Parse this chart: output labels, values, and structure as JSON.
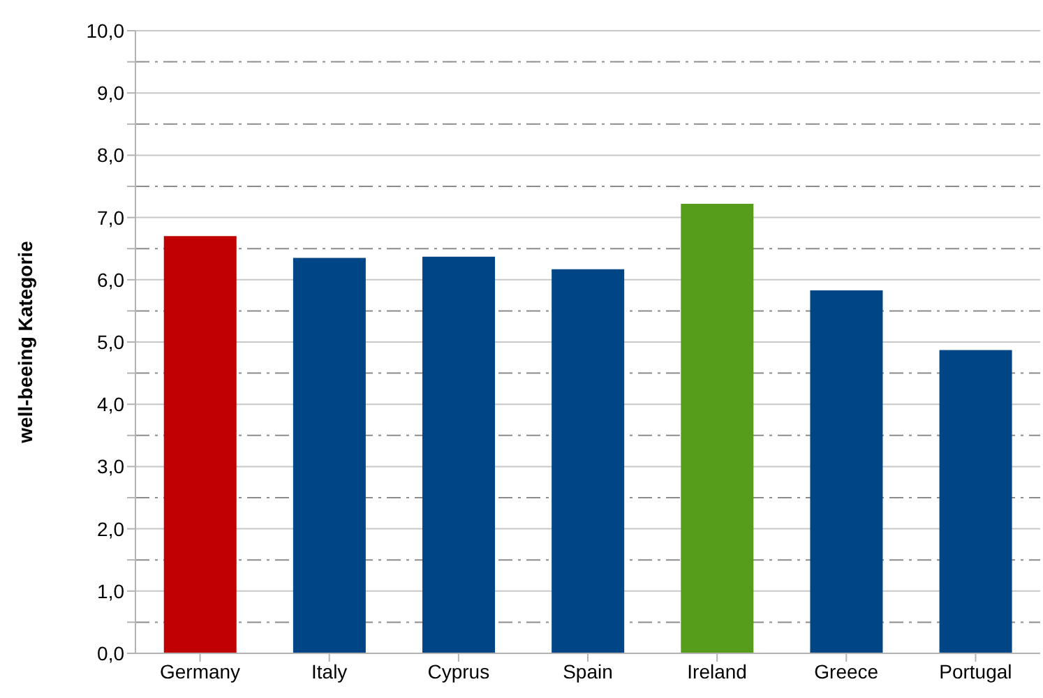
{
  "chart_data": {
    "type": "bar",
    "ylabel": "well-beeing Kategorie",
    "categories": [
      "Germany",
      "Italy",
      "Cyprus",
      "Spain",
      "Ireland",
      "Greece",
      "Portugal"
    ],
    "values": [
      6.7,
      6.35,
      6.37,
      6.17,
      7.22,
      5.83,
      4.87
    ],
    "colors": [
      "#c00000",
      "#004586",
      "#004586",
      "#004586",
      "#579d1c",
      "#004586",
      "#004586"
    ],
    "ylim": [
      0,
      10
    ],
    "yticks": [
      {
        "value": 0,
        "label": "0,0"
      },
      {
        "value": 0.5,
        "label": null
      },
      {
        "value": 1,
        "label": "1,0"
      },
      {
        "value": 1.5,
        "label": null
      },
      {
        "value": 2,
        "label": "2,0"
      },
      {
        "value": 2.5,
        "label": null
      },
      {
        "value": 3,
        "label": "3,0"
      },
      {
        "value": 3.5,
        "label": null
      },
      {
        "value": 4,
        "label": "4,0"
      },
      {
        "value": 4.5,
        "label": null
      },
      {
        "value": 5,
        "label": "5,0"
      },
      {
        "value": 5.5,
        "label": null
      },
      {
        "value": 6,
        "label": "6,0"
      },
      {
        "value": 6.5,
        "label": null
      },
      {
        "value": 7,
        "label": "7,0"
      },
      {
        "value": 7.5,
        "label": null
      },
      {
        "value": 8,
        "label": "8,0"
      },
      {
        "value": 8.5,
        "label": null
      },
      {
        "value": 9,
        "label": "9,0"
      },
      {
        "value": 9.5,
        "label": null
      },
      {
        "value": 10,
        "label": "10,0"
      }
    ],
    "grid": true
  }
}
